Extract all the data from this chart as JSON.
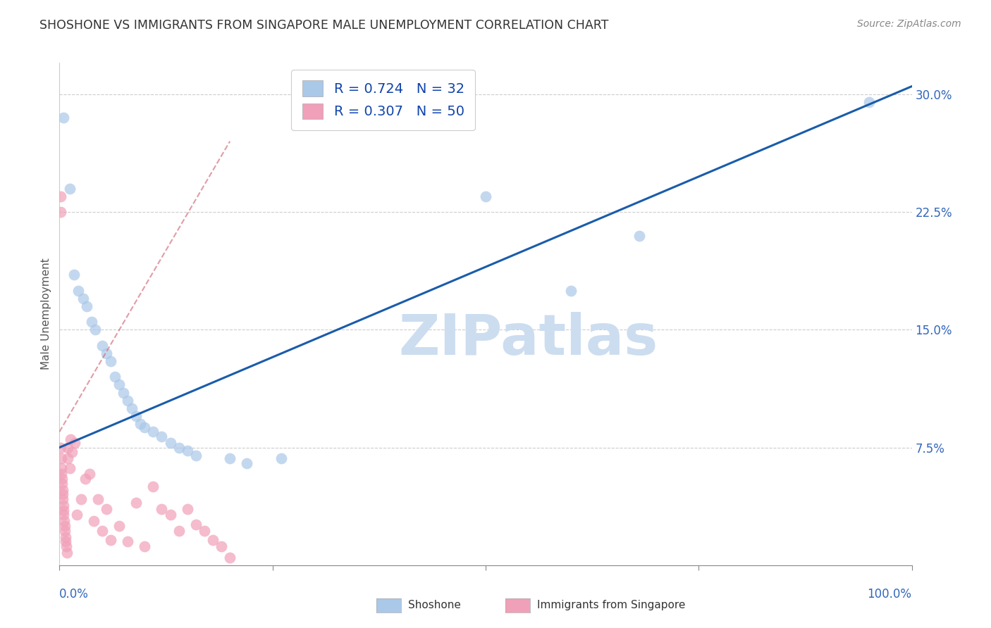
{
  "title": "SHOSHONE VS IMMIGRANTS FROM SINGAPORE MALE UNEMPLOYMENT CORRELATION CHART",
  "source": "Source: ZipAtlas.com",
  "ylabel": "Male Unemployment",
  "y_ticks": [
    0.0,
    0.075,
    0.15,
    0.225,
    0.3
  ],
  "y_tick_labels": [
    "",
    "7.5%",
    "15.0%",
    "22.5%",
    "30.0%"
  ],
  "legend_text1": "R = 0.724   N = 32",
  "legend_text2": "R = 0.307   N = 50",
  "shoshone_color": "#aac8e8",
  "singapore_color": "#f0a0b8",
  "shoshone_line_color": "#1a5caa",
  "singapore_line_color": "#d06878",
  "watermark": "ZIPatlas",
  "watermark_color": "#ccddf0",
  "shoshone_points": [
    [
      0.005,
      0.285
    ],
    [
      0.012,
      0.24
    ],
    [
      0.017,
      0.185
    ],
    [
      0.022,
      0.175
    ],
    [
      0.028,
      0.17
    ],
    [
      0.032,
      0.165
    ],
    [
      0.038,
      0.155
    ],
    [
      0.042,
      0.15
    ],
    [
      0.05,
      0.14
    ],
    [
      0.055,
      0.135
    ],
    [
      0.06,
      0.13
    ],
    [
      0.065,
      0.12
    ],
    [
      0.07,
      0.115
    ],
    [
      0.075,
      0.11
    ],
    [
      0.08,
      0.105
    ],
    [
      0.085,
      0.1
    ],
    [
      0.09,
      0.095
    ],
    [
      0.095,
      0.09
    ],
    [
      0.1,
      0.088
    ],
    [
      0.11,
      0.085
    ],
    [
      0.12,
      0.082
    ],
    [
      0.13,
      0.078
    ],
    [
      0.14,
      0.075
    ],
    [
      0.15,
      0.073
    ],
    [
      0.16,
      0.07
    ],
    [
      0.2,
      0.068
    ],
    [
      0.22,
      0.065
    ],
    [
      0.26,
      0.068
    ],
    [
      0.5,
      0.235
    ],
    [
      0.6,
      0.175
    ],
    [
      0.68,
      0.21
    ],
    [
      0.95,
      0.295
    ]
  ],
  "singapore_points": [
    [
      0.001,
      0.235
    ],
    [
      0.001,
      0.225
    ],
    [
      0.0015,
      0.075
    ],
    [
      0.002,
      0.068
    ],
    [
      0.002,
      0.062
    ],
    [
      0.0025,
      0.058
    ],
    [
      0.003,
      0.055
    ],
    [
      0.003,
      0.052
    ],
    [
      0.0035,
      0.048
    ],
    [
      0.004,
      0.045
    ],
    [
      0.004,
      0.042
    ],
    [
      0.0045,
      0.038
    ],
    [
      0.005,
      0.035
    ],
    [
      0.005,
      0.032
    ],
    [
      0.0055,
      0.028
    ],
    [
      0.006,
      0.025
    ],
    [
      0.006,
      0.022
    ],
    [
      0.007,
      0.018
    ],
    [
      0.007,
      0.015
    ],
    [
      0.008,
      0.012
    ],
    [
      0.009,
      0.008
    ],
    [
      0.01,
      0.075
    ],
    [
      0.01,
      0.068
    ],
    [
      0.012,
      0.062
    ],
    [
      0.013,
      0.08
    ],
    [
      0.015,
      0.072
    ],
    [
      0.018,
      0.078
    ],
    [
      0.02,
      0.032
    ],
    [
      0.025,
      0.042
    ],
    [
      0.03,
      0.055
    ],
    [
      0.035,
      0.058
    ],
    [
      0.04,
      0.028
    ],
    [
      0.045,
      0.042
    ],
    [
      0.05,
      0.022
    ],
    [
      0.055,
      0.036
    ],
    [
      0.06,
      0.016
    ],
    [
      0.07,
      0.025
    ],
    [
      0.08,
      0.015
    ],
    [
      0.09,
      0.04
    ],
    [
      0.1,
      0.012
    ],
    [
      0.11,
      0.05
    ],
    [
      0.12,
      0.036
    ],
    [
      0.13,
      0.032
    ],
    [
      0.14,
      0.022
    ],
    [
      0.15,
      0.036
    ],
    [
      0.16,
      0.026
    ],
    [
      0.17,
      0.022
    ],
    [
      0.18,
      0.016
    ],
    [
      0.19,
      0.012
    ],
    [
      0.2,
      0.005
    ]
  ],
  "shoshone_trend_x": [
    0.0,
    1.0
  ],
  "shoshone_trend_y": [
    0.075,
    0.305
  ],
  "singapore_trend_x": [
    0.0,
    0.2
  ],
  "singapore_trend_y": [
    0.085,
    0.27
  ],
  "xlim": [
    0.0,
    1.0
  ],
  "ylim": [
    0.0,
    0.32
  ]
}
